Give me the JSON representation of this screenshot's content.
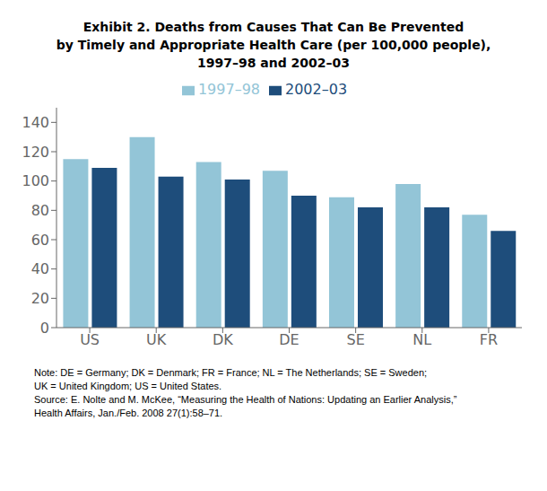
{
  "chart_data": {
    "type": "bar",
    "title": [
      "Exhibit 2. Deaths from Causes That Can Be Prevented",
      "by Timely and Appropriate Health Care (per 100,000 people),",
      "1997–98 and 2002–03"
    ],
    "categories": [
      "US",
      "UK",
      "DK",
      "DE",
      "SE",
      "NL",
      "FR"
    ],
    "series": [
      {
        "name": "1997–98",
        "color": "#93c5d7",
        "values": [
          115,
          130,
          113,
          107,
          89,
          98,
          77
        ]
      },
      {
        "name": "2002–03",
        "color": "#1e4d7b",
        "values": [
          109,
          103,
          101,
          90,
          82,
          82,
          66
        ]
      }
    ],
    "ylim": [
      0,
      150
    ],
    "yticks": [
      0,
      20,
      40,
      60,
      80,
      100,
      120,
      140
    ],
    "grid": false,
    "legend": "top",
    "annotations": [
      "Note: DE = Germany; DK = Denmark; FR = France; NL = The Netherlands; SE = Sweden;",
      "UK = United Kingdom; US = United States.",
      "Source: E. Nolte and M. McKee, “Measuring the Health of Nations: Updating an Earlier Analysis,”",
      "Health Affairs, Jan./Feb. 2008 27(1):58–71."
    ]
  }
}
